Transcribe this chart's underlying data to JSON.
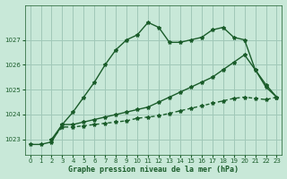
{
  "background_color": "#c8e8d8",
  "grid_color": "#a0c8b8",
  "line_color": "#1a5c2a",
  "title": "Graphe pression niveau de la mer (hPa)",
  "xlim": [
    -0.5,
    23.5
  ],
  "ylim": [
    1022.4,
    1028.4
  ],
  "yticks": [
    1023,
    1024,
    1025,
    1026,
    1027
  ],
  "xticks": [
    0,
    1,
    2,
    3,
    4,
    5,
    6,
    7,
    8,
    9,
    10,
    11,
    12,
    13,
    14,
    15,
    16,
    17,
    18,
    19,
    20,
    21,
    22,
    23
  ],
  "line1_x": [
    0,
    1,
    2,
    3,
    4,
    5,
    6,
    7,
    8,
    9,
    10,
    11,
    12,
    13,
    14,
    15,
    16,
    17,
    18,
    19,
    20,
    21,
    22,
    23
  ],
  "line1_y": [
    1022.8,
    1022.8,
    1022.9,
    1023.6,
    1024.1,
    1024.7,
    1025.3,
    1026.0,
    1026.6,
    1027.0,
    1027.2,
    1027.7,
    1027.5,
    1026.9,
    1026.9,
    1027.0,
    1027.1,
    1027.4,
    1027.5,
    1027.1,
    1027.0,
    1025.8,
    1025.1,
    1024.7
  ],
  "line2_x": [
    2,
    3,
    4,
    5,
    6,
    7,
    8,
    9,
    10,
    11,
    12,
    13,
    14,
    15,
    16,
    17,
    18,
    19,
    20,
    21,
    22,
    23
  ],
  "line2_y": [
    1023.0,
    1023.6,
    1023.6,
    1023.7,
    1023.8,
    1023.9,
    1024.0,
    1024.1,
    1024.2,
    1024.3,
    1024.5,
    1024.7,
    1024.9,
    1025.1,
    1025.3,
    1025.5,
    1025.8,
    1026.1,
    1026.4,
    1025.8,
    1025.2,
    1024.7
  ],
  "line3_x": [
    2,
    3,
    4,
    5,
    6,
    7,
    8,
    9,
    10,
    11,
    12,
    13,
    14,
    15,
    16,
    17,
    18,
    19,
    20,
    21,
    22,
    23
  ],
  "line3_y": [
    1023.0,
    1023.5,
    1023.5,
    1023.55,
    1023.6,
    1023.65,
    1023.7,
    1023.75,
    1023.85,
    1023.9,
    1023.95,
    1024.05,
    1024.15,
    1024.25,
    1024.35,
    1024.45,
    1024.55,
    1024.65,
    1024.7,
    1024.65,
    1024.6,
    1024.7
  ]
}
